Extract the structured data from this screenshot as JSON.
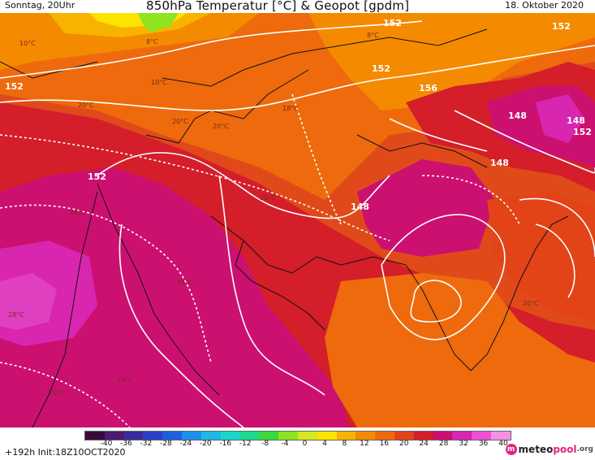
{
  "header": {
    "left": "Sonntag, 20Uhr",
    "title": "850hPa Temperatur [°C] & Geopot [gpdm]",
    "right": "18. Oktober 2020"
  },
  "footer": {
    "left": "+192h  Init:18Z10OCT2020"
  },
  "brand": {
    "icon": "m",
    "part1": "meteo",
    "part2": "pool",
    "part3": ".org"
  },
  "colorbar": {
    "ticks": [
      "-40",
      "-36",
      "-32",
      "-28",
      "-24",
      "-20",
      "-16",
      "-12",
      "-8",
      "-4",
      "0",
      "4",
      "8",
      "12",
      "16",
      "20",
      "24",
      "28",
      "32",
      "36",
      "40"
    ],
    "colors": [
      "#3a0a3a",
      "#4c1a6e",
      "#3b2a9e",
      "#2c3fc8",
      "#1e5fe0",
      "#1c8ff0",
      "#1cb8e8",
      "#18d6c8",
      "#1ed88c",
      "#3cd83c",
      "#8ee41e",
      "#d8e81e",
      "#fde400",
      "#f8b200",
      "#f48a00",
      "#ee6a0c",
      "#e24418",
      "#d41e2a",
      "#cc1070",
      "#d826b0",
      "#f050d0",
      "#f590e2"
    ]
  },
  "map_labels": {
    "geopot": [
      "152",
      "152",
      "152",
      "152",
      "156",
      "152",
      "148",
      "148",
      "148",
      "152",
      "148"
    ],
    "temps": [
      "10°C",
      "8°C",
      "10°C",
      "20°C",
      "18°C",
      "20°C",
      "20°C",
      "20°C",
      "24°C",
      "24°C",
      "28°C",
      "24°C",
      "20°C",
      "20°C",
      "8°C"
    ]
  }
}
